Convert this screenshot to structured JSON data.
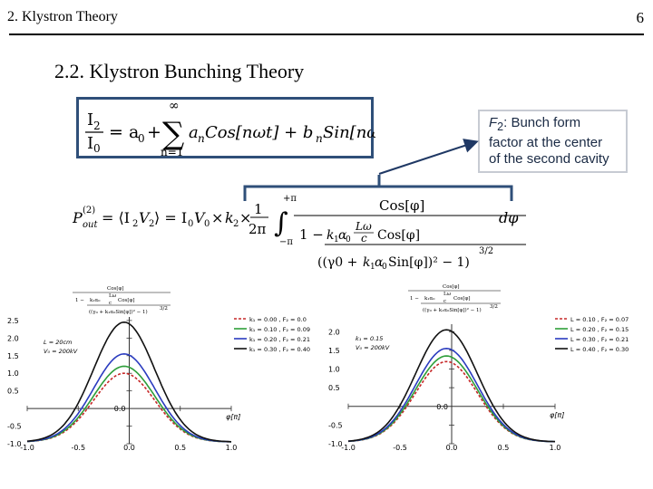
{
  "header": {
    "title": "2. Klystron Theory",
    "page_number": "6"
  },
  "section": {
    "title": "2.2. Klystron Bunching Theory"
  },
  "note": {
    "symbol": "F",
    "symbol_sub": "2",
    "text_line1": ": Bunch form",
    "text_line2": "factor at the center",
    "text_line3": "of the second cavity"
  },
  "chart_data": [
    {
      "type": "line",
      "x_ticks": [
        "-1.0",
        "-0.5",
        "0.0",
        "0.5",
        "1.0"
      ],
      "y_ticks": [
        "-1.0",
        "-0.5",
        "0.0",
        "0.5",
        "1.0",
        "1.5",
        "2.0",
        "2.5"
      ],
      "xlabel": "φ[π]",
      "xlim": [
        -1.0,
        1.0
      ],
      "ylim": [
        -1.0,
        2.6
      ],
      "annotation_lines": [
        "L = 20cm",
        "V₀ = 200kV"
      ],
      "legend_position": "right",
      "series": [
        {
          "name": "k₁ = 0.00 ,  F₂ = 0.0",
          "color": "#c62828",
          "dashed": true,
          "peak": 1.0
        },
        {
          "name": "k₁ = 0.10 ,  F₂ = 0.09",
          "color": "#2e9e3a",
          "dashed": false,
          "peak": 1.2
        },
        {
          "name": "k₁ = 0.20 ,  F₂ = 0.21",
          "color": "#2a3bbf",
          "dashed": false,
          "peak": 1.55
        },
        {
          "name": "k₁ = 0.30 ,  F₂ = 0.40",
          "color": "#111111",
          "dashed": false,
          "peak": 2.45
        }
      ]
    },
    {
      "type": "line",
      "x_ticks": [
        "-1.0",
        "-0.5",
        "0.0",
        "0.5",
        "1.0"
      ],
      "y_ticks": [
        "-1.0",
        "-0.5",
        "0.0",
        "0.5",
        "1.0",
        "1.5",
        "2.0"
      ],
      "xlabel": "φ[π]",
      "xlim": [
        -1.0,
        1.0
      ],
      "ylim": [
        -1.0,
        2.2
      ],
      "annotation_lines": [
        "k₁ = 0.15",
        "V₀ = 200kV"
      ],
      "legend_position": "right",
      "series": [
        {
          "name": "L = 0.10 ,  F₂ = 0.07",
          "color": "#c62828",
          "dashed": true,
          "peak": 1.2
        },
        {
          "name": "L = 0.20 ,  F₂ = 0.15",
          "color": "#2e9e3a",
          "dashed": false,
          "peak": 1.35
        },
        {
          "name": "L = 0.30 ,  F₂ = 0.21",
          "color": "#2a3bbf",
          "dashed": false,
          "peak": 1.55
        },
        {
          "name": "L = 0.40 ,  F₂ = 0.30",
          "color": "#111111",
          "dashed": false,
          "peak": 2.05
        }
      ]
    }
  ]
}
